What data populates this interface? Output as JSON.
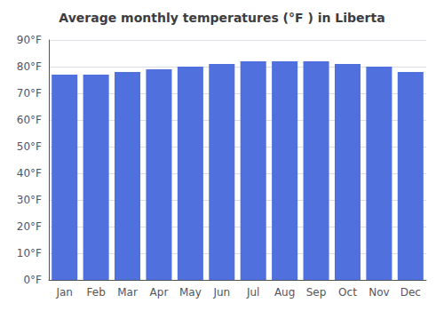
{
  "chart_data": {
    "type": "bar",
    "title": "Average monthly temperatures (°F ) in Liberta",
    "categories": [
      "Jan",
      "Feb",
      "Mar",
      "Apr",
      "May",
      "Jun",
      "Jul",
      "Aug",
      "Sep",
      "Oct",
      "Nov",
      "Dec"
    ],
    "values": [
      77,
      77,
      78,
      79,
      80,
      81,
      82,
      82,
      82,
      81,
      80,
      78
    ],
    "ylim": [
      0,
      90
    ],
    "yticks": [
      {
        "value": 0,
        "label": "0°F"
      },
      {
        "value": 10,
        "label": "10°F"
      },
      {
        "value": 20,
        "label": "20°F"
      },
      {
        "value": 30,
        "label": "30°F"
      },
      {
        "value": 40,
        "label": "40°F"
      },
      {
        "value": 50,
        "label": "50°F"
      },
      {
        "value": 60,
        "label": "60°F"
      },
      {
        "value": 70,
        "label": "70°F"
      },
      {
        "value": 80,
        "label": "80°F"
      },
      {
        "value": 90,
        "label": "90°F"
      }
    ],
    "grid": true
  }
}
